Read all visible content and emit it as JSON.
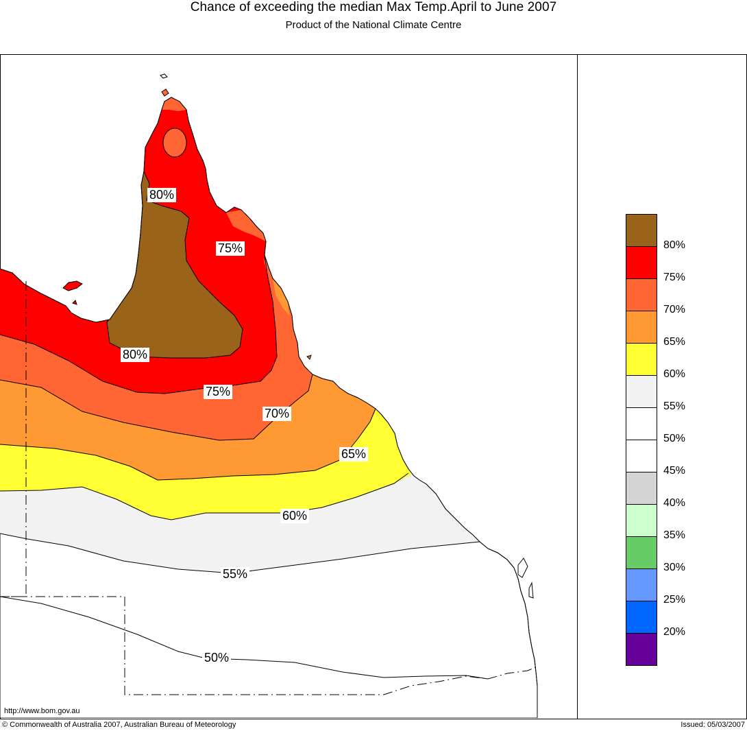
{
  "header": {
    "title": "Chance of exceeding the median Max Temp.April to June 2007",
    "subtitle": "Product of the National Climate Centre"
  },
  "map": {
    "contour_labels": [
      {
        "name": "contour-label-80-north",
        "text": "80%"
      },
      {
        "name": "contour-label-75-north",
        "text": "75%"
      },
      {
        "name": "contour-label-80-south",
        "text": "80%"
      },
      {
        "name": "contour-label-75-south",
        "text": "75%"
      },
      {
        "name": "contour-label-70",
        "text": "70%"
      },
      {
        "name": "contour-label-65",
        "text": "65%"
      },
      {
        "name": "contour-label-60",
        "text": "60%"
      },
      {
        "name": "contour-label-55",
        "text": "55%"
      },
      {
        "name": "contour-label-50",
        "text": "50%"
      }
    ],
    "zone_colors": {
      "above_80": "#996319",
      "75_80": "#ff0000",
      "70_75": "#ff6633",
      "65_70": "#ff9933",
      "60_65": "#ffff33",
      "55_60": "#f2f2f2",
      "below_55": "#ffffff"
    }
  },
  "legend": {
    "swatches": [
      {
        "color": "#996319"
      },
      {
        "color": "#ff0000"
      },
      {
        "color": "#ff6633"
      },
      {
        "color": "#ff9933"
      },
      {
        "color": "#ffff33"
      },
      {
        "color": "#f2f2f2"
      },
      {
        "color": "#ffffff"
      },
      {
        "color": "#ffffff"
      },
      {
        "color": "#d4d4d4"
      },
      {
        "color": "#ccffcc"
      },
      {
        "color": "#66cc66"
      },
      {
        "color": "#6699ff"
      },
      {
        "color": "#0066ff"
      },
      {
        "color": "#660099"
      }
    ],
    "labels": [
      "80%",
      "75%",
      "70%",
      "65%",
      "60%",
      "55%",
      "50%",
      "45%",
      "40%",
      "35%",
      "30%",
      "25%",
      "20%"
    ]
  },
  "footer": {
    "url": "http://www.bom.gov.au",
    "copyright": "© Commonwealth of Australia 2007, Australian Bureau of Meteorology",
    "issued": "Issued: 05/03/2007"
  }
}
